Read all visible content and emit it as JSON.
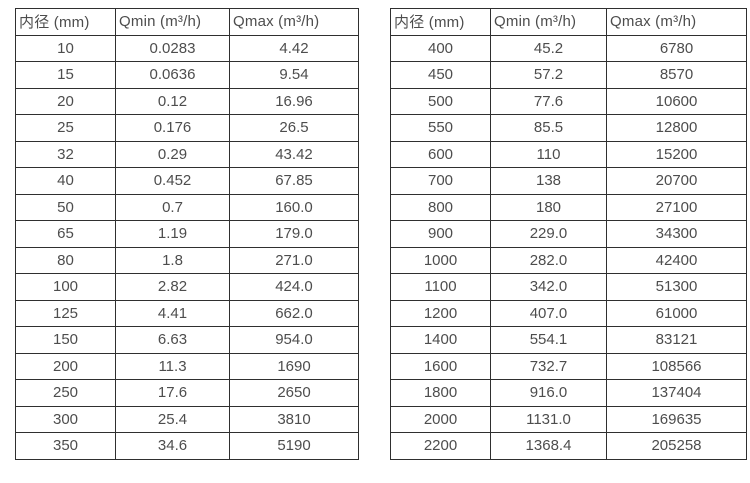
{
  "table_left": {
    "headers": [
      "内径 (mm)",
      "Qmin (m³/h)",
      "Qmax (m³/h)"
    ],
    "rows": [
      [
        "10",
        "0.0283",
        "4.42"
      ],
      [
        "15",
        "0.0636",
        "9.54"
      ],
      [
        "20",
        "0.12",
        "16.96"
      ],
      [
        "25",
        "0.176",
        "26.5"
      ],
      [
        "32",
        "0.29",
        "43.42"
      ],
      [
        "40",
        "0.452",
        "67.85"
      ],
      [
        "50",
        "0.7",
        "160.0"
      ],
      [
        "65",
        "1.19",
        "179.0"
      ],
      [
        "80",
        "1.8",
        "271.0"
      ],
      [
        "100",
        "2.82",
        "424.0"
      ],
      [
        "125",
        "4.41",
        "662.0"
      ],
      [
        "150",
        "6.63",
        "954.0"
      ],
      [
        "200",
        "11.3",
        "1690"
      ],
      [
        "250",
        "17.6",
        "2650"
      ],
      [
        "300",
        "25.4",
        "3810"
      ],
      [
        "350",
        "34.6",
        "5190"
      ]
    ]
  },
  "table_right": {
    "headers": [
      "内径 (mm)",
      "Qmin (m³/h)",
      "Qmax (m³/h)"
    ],
    "rows": [
      [
        "400",
        "45.2",
        "6780"
      ],
      [
        "450",
        "57.2",
        "8570"
      ],
      [
        "500",
        "77.6",
        "10600"
      ],
      [
        "550",
        "85.5",
        "12800"
      ],
      [
        "600",
        "110",
        "15200"
      ],
      [
        "700",
        "138",
        "20700"
      ],
      [
        "800",
        "180",
        "27100"
      ],
      [
        "900",
        "229.0",
        "34300"
      ],
      [
        "1000",
        "282.0",
        "42400"
      ],
      [
        "1100",
        "342.0",
        "51300"
      ],
      [
        "1200",
        "407.0",
        "61000"
      ],
      [
        "1400",
        "554.1",
        "83121"
      ],
      [
        "1600",
        "732.7",
        "108566"
      ],
      [
        "1800",
        "916.0",
        "137404"
      ],
      [
        "2000",
        "1131.0",
        "169635"
      ],
      [
        "2200",
        "1368.4",
        "205258"
      ]
    ]
  },
  "colors": {
    "border": "#2f2f2f",
    "text": "#4d4d4d",
    "background": "#ffffff"
  }
}
